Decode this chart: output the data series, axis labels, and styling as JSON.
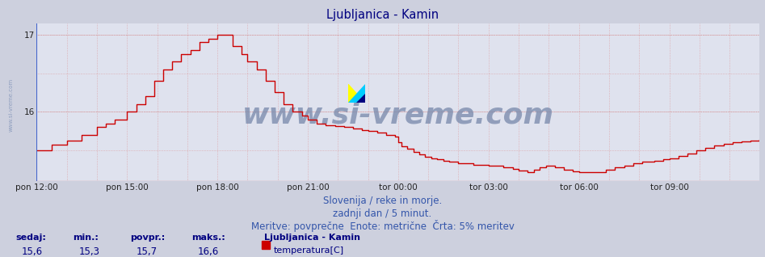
{
  "title": "Ljubljanica - Kamin",
  "title_color": "#000080",
  "bg_color": "#cdd0de",
  "plot_bg_color": "#dfe2ee",
  "line_color": "#cc0000",
  "line_width": 1.0,
  "ylim": [
    15.1,
    17.15
  ],
  "ytick_positions": [
    16.0,
    17.0
  ],
  "ytick_labels": [
    "16",
    "17"
  ],
  "xlabel_ticks": [
    "pon 12:00",
    "pon 15:00",
    "pon 18:00",
    "pon 21:00",
    "tor 00:00",
    "tor 03:00",
    "tor 06:00",
    "tor 09:00"
  ],
  "xtick_positions": [
    0,
    3,
    6,
    9,
    12,
    15,
    18,
    21
  ],
  "watermark": "www.si-vreme.com",
  "watermark_color": "#7788aa",
  "watermark_fontsize": 26,
  "footer_line1": "Slovenija / reke in morje.",
  "footer_line2": "zadnji dan / 5 minut.",
  "footer_line3": "Meritve: povprečne  Enote: metrične  Črta: 5% meritev",
  "footer_color": "#3355aa",
  "footer_fontsize": 8.5,
  "stats_labels": [
    "sedaj:",
    "min.:",
    "povpr.:",
    "maks.:"
  ],
  "stats_values": [
    "15,6",
    "15,3",
    "15,7",
    "16,6"
  ],
  "stats_color": "#000080",
  "legend_title": "Ljubljanica - Kamin",
  "legend_label": "temperatura[C]",
  "legend_color": "#cc0000",
  "left_label": "www.si-vreme.com",
  "left_label_color": "#8899bb",
  "grid_dotted_color": "#cc7777",
  "grid_dotted_color2": "#aabbcc",
  "border_color_left": "#4466cc",
  "border_color_bottom": "#cc0000"
}
